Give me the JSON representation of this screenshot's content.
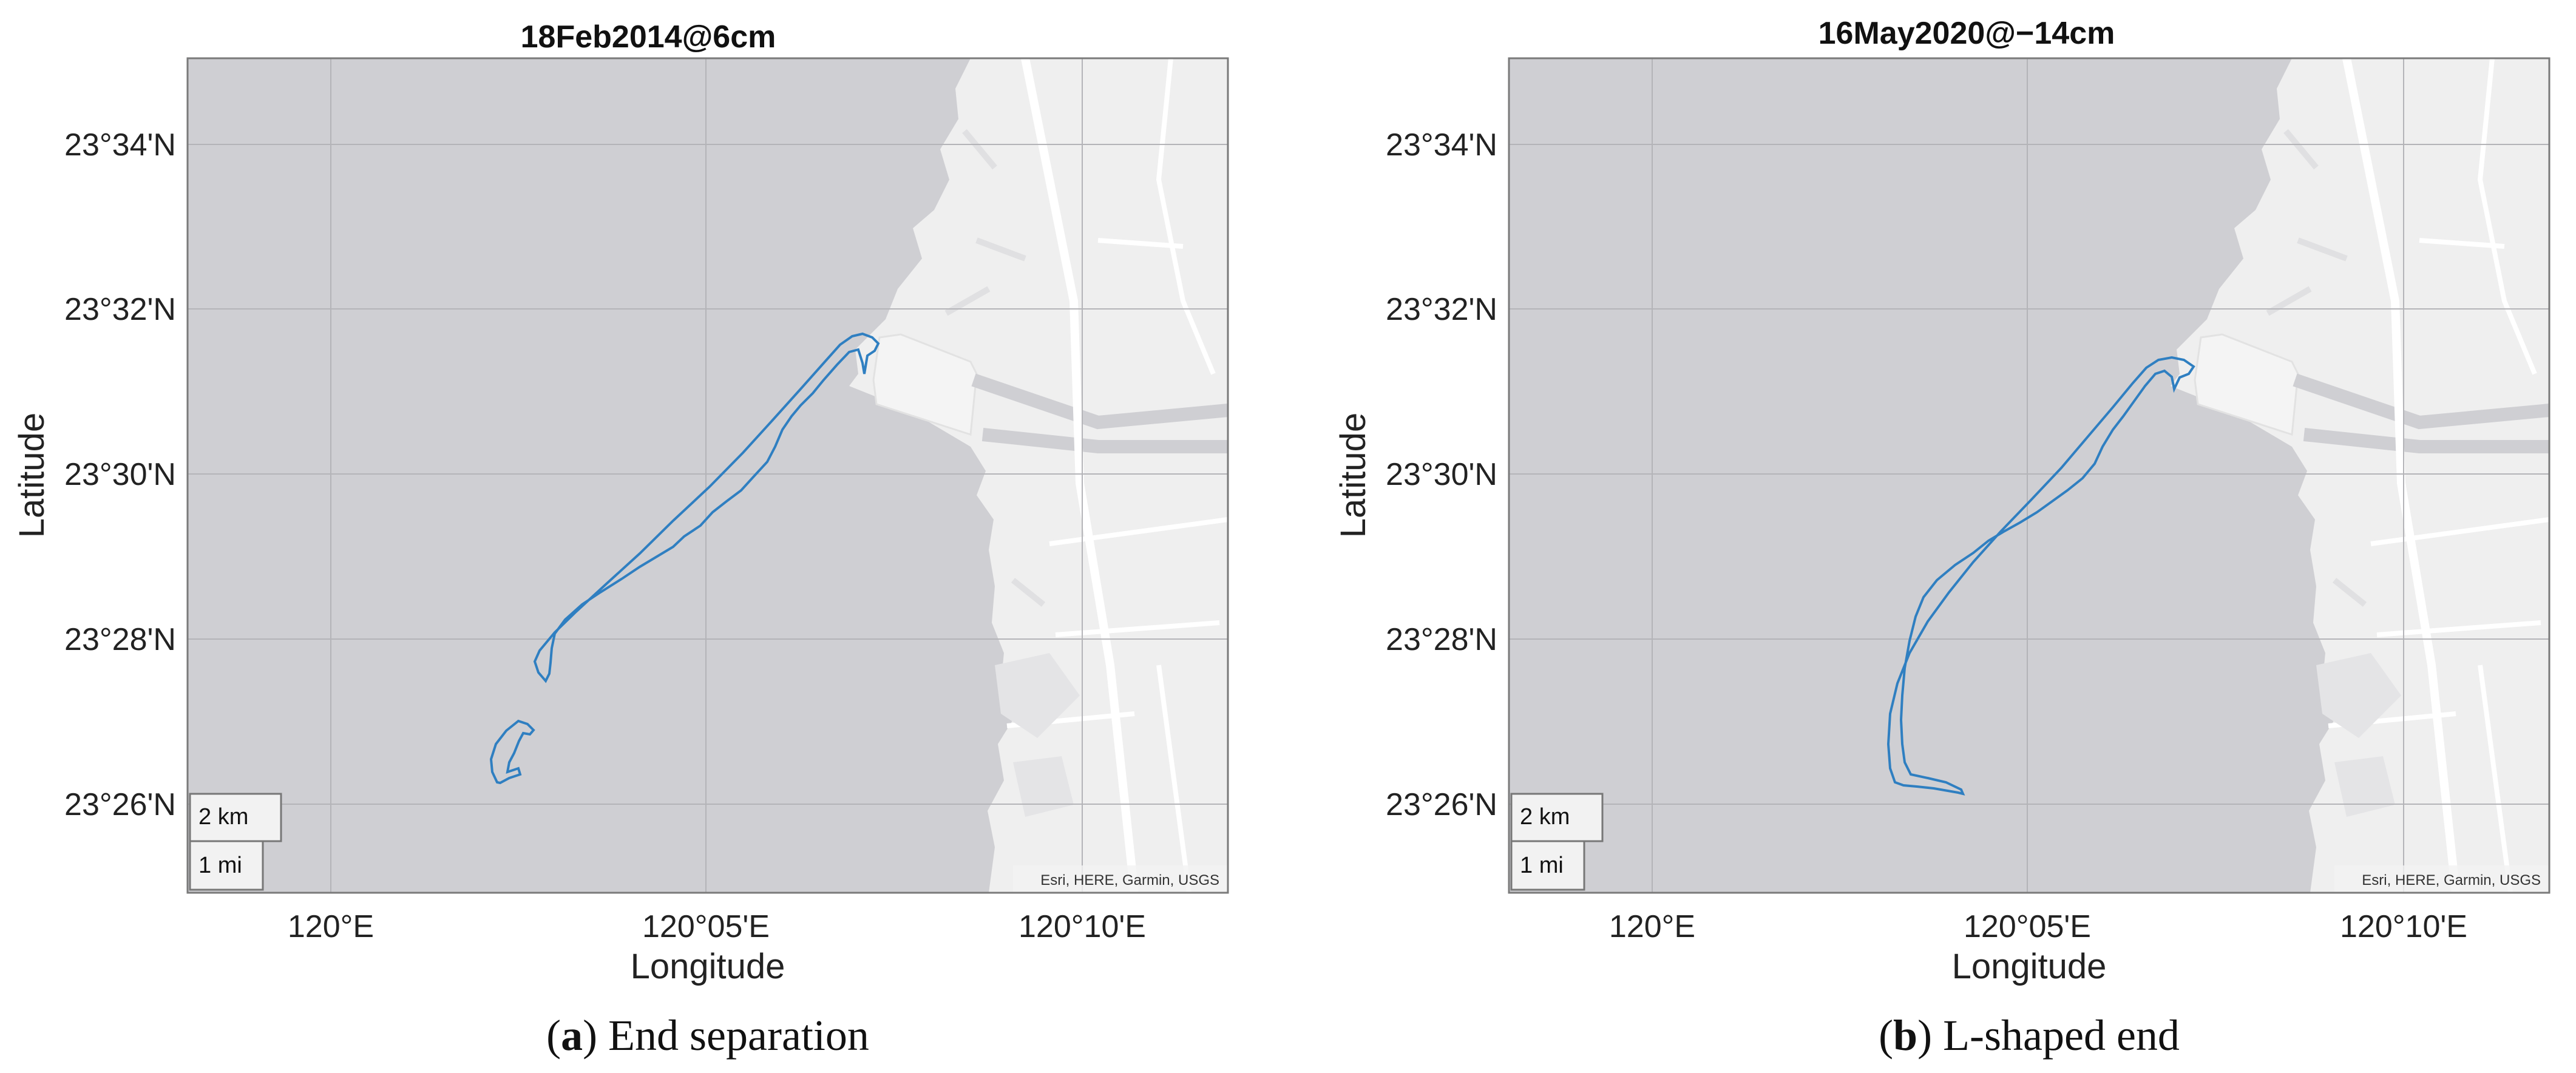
{
  "colors": {
    "water": "#cfcfd3",
    "land": "#efefef",
    "road": "#ffffff",
    "grid": "#b4b4b8",
    "outline": "#2f7fc1",
    "frame": "#7a7a7a"
  },
  "maps": [
    {
      "title": "18Feb2014@6cm",
      "xlabel": "Longitude",
      "ylabel": "Latitude",
      "lon_ticks": [
        "120°E",
        "120°05'E",
        "120°10'E"
      ],
      "lat_ticks": [
        "23°34'N",
        "23°32'N",
        "23°30'N",
        "23°28'N",
        "23°26'N"
      ],
      "scale_km": "2 km",
      "scale_mi": "1 mi",
      "attribution": "Esri, HERE, Garmin, USGS",
      "caption_letter": "a",
      "caption_text": "End separation"
    },
    {
      "title": "16May2020@−14cm",
      "xlabel": "Longitude",
      "ylabel": "Latitude",
      "lon_ticks": [
        "120°E",
        "120°05'E",
        "120°10'E"
      ],
      "lat_ticks": [
        "23°34'N",
        "23°32'N",
        "23°30'N",
        "23°28'N",
        "23°26'N"
      ],
      "scale_km": "2 km",
      "scale_mi": "1 mi",
      "attribution": "Esri, HERE, Garmin, USGS",
      "caption_letter": "b",
      "caption_text": "L-shaped end"
    }
  ]
}
